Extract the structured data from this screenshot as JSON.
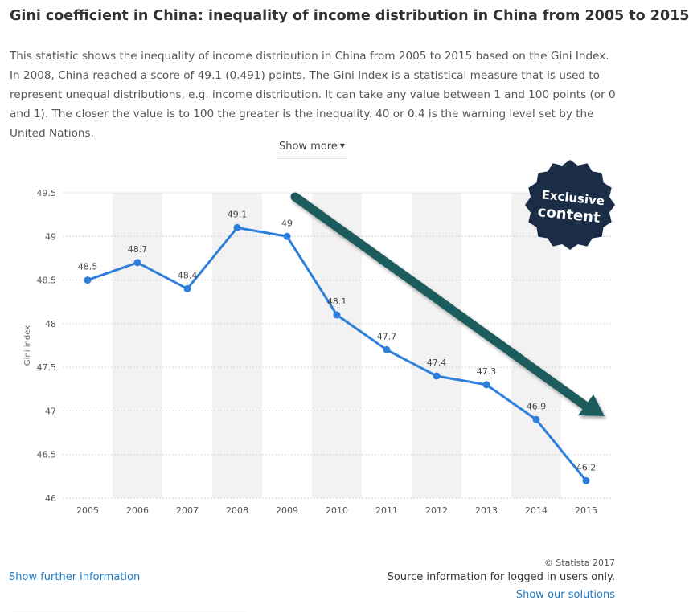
{
  "header": {
    "title": "Gini coefficient in China: inequality of income distribution in China from 2005 to 2015",
    "description": "This statistic shows the inequality of income distribution in China from 2005 to 2015 based on the Gini Index. In 2008, China reached a score of 49.1 (0.491) points. The Gini Index is a statistical measure that is used to represent unequal distributions, e.g. income distribution. It can take any value between 1 and 100 points (or 0 and 1). The closer the value is to 100 the greater is the inequality. 40 or 0.4 is the warning level set by the United Nations.",
    "show_more_label": "Show more"
  },
  "badge": {
    "line1": "Exclusive",
    "line2": "content",
    "color": "#1b2c47"
  },
  "footer": {
    "further_info_label": "Show further information",
    "copyright": "© Statista 2017",
    "source_info": "Source information for logged in users only.",
    "solutions_label": "Show our solutions"
  },
  "colors": {
    "line": "#2e7fdb",
    "trend_arrow": "#1e5b5b",
    "band": "#f2f2f2",
    "link": "#1f7ac2"
  },
  "chart_data": {
    "type": "line",
    "title": "",
    "xlabel": "",
    "ylabel": "Gini index",
    "categories": [
      "2005",
      "2006",
      "2007",
      "2008",
      "2009",
      "2010",
      "2011",
      "2012",
      "2013",
      "2014",
      "2015"
    ],
    "series": [
      {
        "values": [
          48.5,
          48.7,
          48.4,
          49.1,
          49,
          48.1,
          47.7,
          47.4,
          47.3,
          46.9,
          46.2
        ]
      }
    ],
    "data_labels": [
      "48.5",
      "48.7",
      "48.4",
      "49.1",
      "49",
      "48.1",
      "47.7",
      "47.4",
      "47.3",
      "46.9",
      "46.2"
    ],
    "yticks": [
      "46",
      "46.5",
      "47",
      "47.5",
      "48",
      "48.5",
      "49",
      "49.5"
    ],
    "ylim": [
      46,
      49.5
    ],
    "grid": true,
    "alternating_bands": true,
    "annotation": "downward trend arrow"
  }
}
